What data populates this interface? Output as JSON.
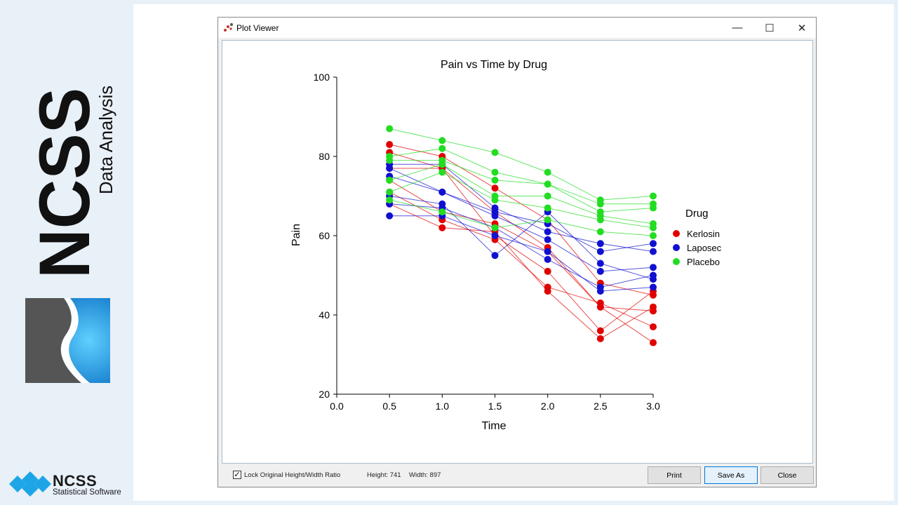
{
  "branding": {
    "vertical_brand": "NCSS",
    "vertical_tagline": "Data Analysis",
    "bottom_brand": "NCSS",
    "bottom_tagline": "Statistical Software",
    "colors": {
      "logo_blue": "#1ea5e8",
      "logo_gray": "#555555",
      "text_dark": "#111111"
    }
  },
  "window": {
    "title": "Plot Viewer",
    "icon": "scatter-plot-icon",
    "controls": {
      "minimize": "—",
      "maximize": "☐",
      "close": "✕"
    }
  },
  "options": {
    "lock_ratio_label": "Lock Original Height/Width Ratio",
    "lock_ratio_checked": true,
    "height_text": "Height: 741",
    "width_text": "Width: 897"
  },
  "buttons": {
    "print": "Print",
    "save_as": "Save As",
    "close": "Close"
  },
  "chart_data": {
    "type": "line",
    "title": "Pain vs Time by Drug",
    "xlabel": "Time",
    "ylabel": "Pain",
    "xlim": [
      0,
      3
    ],
    "ylim": [
      20,
      100
    ],
    "x_ticks": [
      "0.0",
      "0.5",
      "1.0",
      "1.5",
      "2.0",
      "2.5",
      "3.0"
    ],
    "y_ticks": [
      "20",
      "40",
      "60",
      "80",
      "100"
    ],
    "grid": false,
    "legend_title": "Drug",
    "legend_position": "right",
    "x": [
      0.5,
      1.0,
      1.5,
      2.0,
      2.5,
      3.0
    ],
    "groups": [
      {
        "name": "Kerlosin",
        "color": "#e00000",
        "subjects": [
          [
            83,
            80,
            72,
            64,
            48,
            45
          ],
          [
            81,
            77,
            66,
            57,
            42,
            41
          ],
          [
            77,
            77,
            60,
            51,
            36,
            46
          ],
          [
            71,
            64,
            59,
            47,
            43,
            37
          ],
          [
            68,
            62,
            61,
            46,
            34,
            42
          ],
          [
            74,
            66,
            63,
            56,
            42,
            33
          ]
        ]
      },
      {
        "name": "Laposec",
        "color": "#1010d0",
        "subjects": [
          [
            78,
            78,
            67,
            61,
            58,
            56
          ],
          [
            77,
            71,
            66,
            63,
            56,
            58
          ],
          [
            75,
            71,
            65,
            59,
            51,
            52
          ],
          [
            70,
            68,
            55,
            66,
            53,
            49
          ],
          [
            68,
            67,
            62,
            54,
            47,
            50
          ],
          [
            65,
            65,
            60,
            56,
            46,
            47
          ]
        ]
      },
      {
        "name": "Placebo",
        "color": "#22dd22",
        "subjects": [
          [
            87,
            84,
            81,
            76,
            69,
            70
          ],
          [
            80,
            82,
            76,
            73,
            68,
            68
          ],
          [
            79,
            79,
            74,
            73,
            66,
            67
          ],
          [
            74,
            78,
            70,
            70,
            65,
            63
          ],
          [
            71,
            76,
            69,
            67,
            64,
            62
          ],
          [
            69,
            66,
            62,
            64,
            61,
            60
          ]
        ]
      }
    ]
  }
}
